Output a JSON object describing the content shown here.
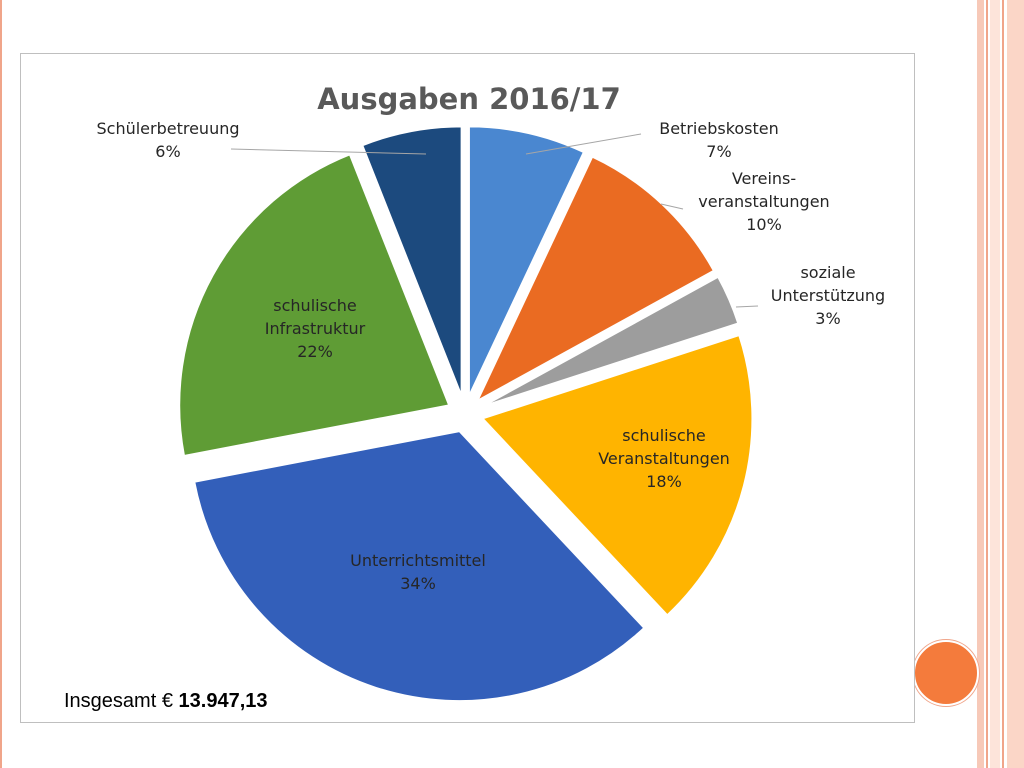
{
  "chart_data": {
    "type": "pie",
    "title": "Ausgaben 2016/17",
    "exploded": true,
    "slices": [
      {
        "label": [
          "Betriebskosten"
        ],
        "value": 7,
        "pct": "7%",
        "color": "#4a87d0",
        "label_pos": "outside"
      },
      {
        "label": [
          "Vereins-",
          "veranstaltungen"
        ],
        "value": 10,
        "pct": "10%",
        "color": "#ea6b22",
        "label_pos": "outside"
      },
      {
        "label": [
          "soziale",
          "Unterstützung"
        ],
        "value": 3,
        "pct": "3%",
        "color": "#9d9d9d",
        "label_pos": "outside"
      },
      {
        "label": [
          "schulische",
          "Veranstaltungen"
        ],
        "value": 18,
        "pct": "18%",
        "color": "#ffb400",
        "label_pos": "inside"
      },
      {
        "label": [
          "Unterrichtsmittel"
        ],
        "value": 34,
        "pct": "34%",
        "color": "#335fba",
        "label_pos": "inside"
      },
      {
        "label": [
          "schulische",
          "Infrastruktur"
        ],
        "value": 22,
        "pct": "22%",
        "color": "#5f9c35",
        "label_pos": "inside"
      },
      {
        "label": [
          "Schülerbetreuung"
        ],
        "value": 6,
        "pct": "6%",
        "color": "#1c4a7e",
        "label_pos": "outside"
      }
    ]
  },
  "footer": {
    "total_label": "Insgesamt",
    "currency": "€",
    "total_value": "13.947,13"
  },
  "theme": {
    "accent": "#f47b3c",
    "border_accent": "#f0a58a"
  }
}
